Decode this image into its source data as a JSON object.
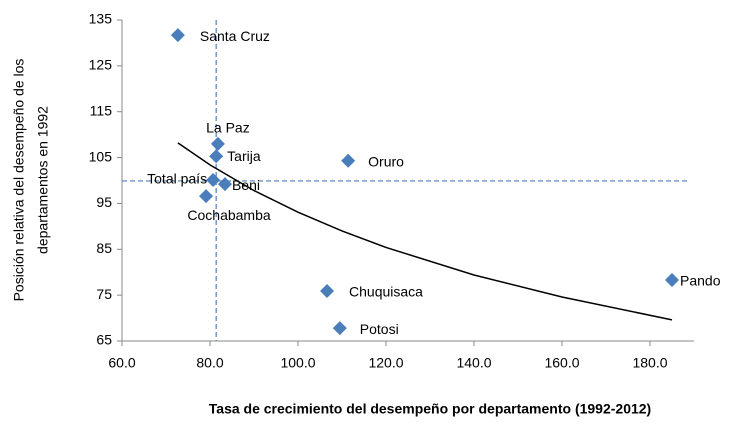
{
  "chart_data": {
    "type": "scatter",
    "ylabel": [
      "Posición relativa del desempeño de los",
      "departamentos en 1992"
    ],
    "xlabel": "Tasa de crecimiento del desempeño por departamento (1992-2012)",
    "color": "#4a7ebb",
    "points": [
      "Santa Cruz",
      "La Paz",
      "Tarija",
      "Oruro",
      "Total país",
      "Beni",
      "Cochabamba",
      "Pando",
      "Chuquisaca",
      "Potosi"
    ],
    "x": [
      72.7,
      81.8,
      81.4,
      111.4,
      80.7,
      83.4,
      79.1,
      185.0,
      106.6,
      109.5
    ],
    "y": [
      131.7,
      108.0,
      105.3,
      104.3,
      100.1,
      99.2,
      96.6,
      78.3,
      75.9,
      67.8
    ],
    "trendline": {
      "x": [
        72.7,
        80,
        90,
        100,
        110,
        120,
        140,
        160,
        185
      ],
      "y": [
        108.2,
        103.4,
        97.8,
        93.1,
        89.0,
        85.4,
        79.4,
        74.6,
        69.6
      ]
    },
    "reference_lines": {
      "x": 81.4,
      "y": 99.9
    },
    "xlim": [
      60,
      190
    ],
    "ylim": [
      65,
      135
    ],
    "xticks": [
      {
        "value": 60,
        "label": "60.0"
      },
      {
        "value": 80,
        "label": "80.0"
      },
      {
        "value": 100,
        "label": "100.0"
      },
      {
        "value": 120,
        "label": "120.0"
      },
      {
        "value": 140,
        "label": "140.0"
      },
      {
        "value": 160,
        "label": "160.0"
      },
      {
        "value": 180,
        "label": "180.0"
      }
    ],
    "yticks": [
      65,
      75,
      85,
      95,
      105,
      115,
      125,
      135
    ]
  }
}
